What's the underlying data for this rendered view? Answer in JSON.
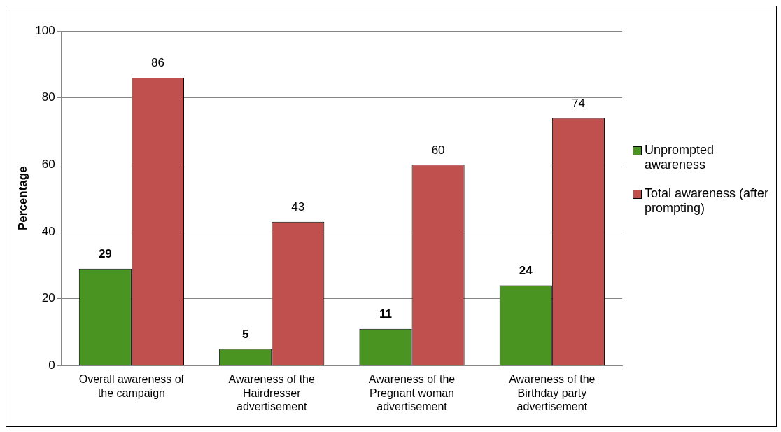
{
  "chart_data": {
    "type": "bar",
    "ylabel": "Percentage",
    "categories": [
      "Overall awareness of the campaign",
      "Awareness of the Hairdresser advertisement",
      "Awareness of the Pregnant woman advertisement",
      "Awareness of the Birthday party advertisement"
    ],
    "series": [
      {
        "name": "Unprompted awareness",
        "color": "#4a9422",
        "values": [
          29,
          5,
          11,
          24
        ]
      },
      {
        "name": "Total awareness (after prompting)",
        "color": "#c0504d",
        "values": [
          86,
          43,
          60,
          74
        ]
      }
    ],
    "ylim": [
      0,
      100
    ],
    "yticks": [
      0,
      20,
      40,
      60,
      80,
      100
    ],
    "grid": "y",
    "legend": "right",
    "data_labels": true
  }
}
